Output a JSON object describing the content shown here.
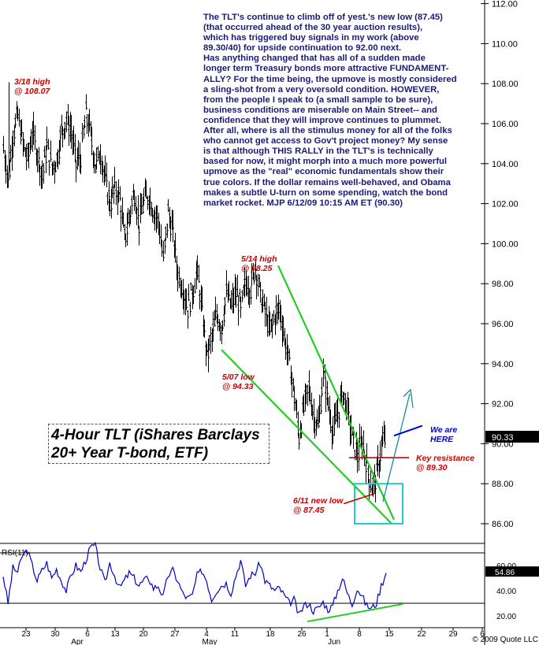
{
  "chart_data": [
    {
      "type": "candlestick",
      "title": "4-Hour TLT (iShares Barclays 20+ Year T-bond, ETF)",
      "title_lines": [
        "4-Hour TLT (iShares Barclays",
        "20+ Year T-bond, ETF)"
      ],
      "ylim": [
        85.0,
        112.0
      ],
      "y_ticks": [
        86.0,
        88.0,
        90.0,
        92.0,
        94.0,
        96.0,
        98.0,
        100.0,
        102.0,
        104.0,
        106.0,
        108.0,
        110.0,
        112.0
      ],
      "y_tick_labels": [
        "86.00",
        "88.00",
        "90.00",
        "92.00",
        "94.00",
        "96.00",
        "98.00",
        "100.00",
        "102.00",
        "104.00",
        "106.00",
        "108.00",
        "110.00",
        "112.00"
      ],
      "last_price": "90.33",
      "commentary": [
        "The TLT's continue to climb off of yest.'s new low (87.45)",
        "(that occurred ahead of the 30 year auction results),",
        "which has triggered buy signals in my work (above",
        "89.30/40) for upside continuation to 92.00 next.",
        "Has anything changed that has all of a sudden made",
        "longer term Treasury bonds more attractive FUNDAMENT-",
        "ALLY? For the time being, the upmove is mostly considered",
        "a sling-shot from a very oversold condition. HOWEVER,",
        "from the people I speak to (a small sample to be sure),",
        "business conditions are miserable on Main Street-- and",
        "confidence that they will improve continues to plummet.",
        "After all, where is all the stimulus money for all of the folks",
        "who cannot get access to Gov't project money?  My sense",
        "is that although THIS RALLY in the TLT's is technically",
        "based for now, it might morph into a much more powerful",
        "upmove as the \"real\" economic fundamentals show their",
        "true colors. If the dollar remains well-behaved, and Obama",
        "makes a subtle U-turn on some spending, watch the bond",
        "market rocket.  MJP  6/12/09  10:15 AM ET  (90.30)"
      ],
      "annotations": [
        {
          "lines": [
            "3/18 high",
            "@ 108.07"
          ],
          "color": "#cc0000"
        },
        {
          "lines": [
            "5/14 high",
            "@ 98.25"
          ],
          "color": "#cc0000"
        },
        {
          "lines": [
            "5/07 low",
            "@ 94.33"
          ],
          "color": "#cc0000"
        },
        {
          "lines": [
            "6/11 new low",
            "@ 87.45"
          ],
          "color": "#cc0000"
        },
        {
          "lines": [
            "Key resistance",
            "@ 89.30"
          ],
          "color": "#cc0000"
        },
        {
          "lines": [
            "We are",
            "HERE"
          ],
          "color": "#0000cc"
        }
      ],
      "x_ticks": [
        "23",
        "30",
        "6",
        "13",
        "20",
        "27",
        "4",
        "11",
        "18",
        "26",
        "1",
        "8",
        "15",
        "22",
        "29",
        "6"
      ],
      "month_labels": [
        "Apr",
        "May",
        "Jun"
      ],
      "price_path": [
        104.8,
        103.2,
        105.5,
        106.4,
        105.0,
        104.2,
        105.6,
        104.5,
        103.4,
        104.9,
        103.8,
        104.2,
        105.6,
        106.2,
        105.6,
        104.0,
        104.4,
        106.5,
        105.5,
        103.9,
        104.6,
        103.2,
        102.0,
        102.8,
        102.3,
        100.2,
        101.4,
        102.6,
        101.0,
        102.2,
        102.4,
        101.6,
        101.2,
        99.2,
        101.6,
        100.5,
        98.5,
        97.8,
        96.8,
        97.6,
        98.6,
        96.6,
        94.4,
        95.3,
        96.5,
        95.8,
        97.5,
        96.9,
        97.6,
        96.7,
        98.1,
        97.8,
        98.9,
        97.4,
        96.6,
        95.6,
        96.4,
        96.8,
        95.3,
        94.0,
        92.4,
        90.4,
        91.8,
        92.8,
        91.4,
        90.9,
        93.5,
        92.0,
        90.6,
        91.5,
        92.6,
        91.7,
        90.3,
        89.4,
        90.1,
        88.9,
        87.8,
        88.4,
        89.9,
        90.4
      ]
    },
    {
      "type": "line",
      "title": "RSI(11)",
      "ylim": [
        10,
        80
      ],
      "y_ticks": [
        20,
        40,
        60
      ],
      "y_tick_labels": [
        "20.00",
        "40.00",
        "60.00"
      ],
      "reference_lines": [
        70,
        30
      ],
      "last_value": "54.86",
      "rsi_path": [
        52,
        30,
        58,
        55,
        68,
        72,
        60,
        48,
        56,
        62,
        50,
        57,
        48,
        40,
        52,
        60,
        55,
        64,
        74,
        76,
        58,
        46,
        62,
        52,
        42,
        48,
        54,
        50,
        44,
        48,
        50,
        42,
        44,
        35,
        52,
        56,
        48,
        38,
        34,
        36,
        52,
        56,
        48,
        33,
        40,
        44,
        46,
        38,
        52,
        64,
        44,
        52,
        54,
        62,
        48,
        44,
        40,
        42,
        36,
        30,
        33,
        20,
        28,
        30,
        24,
        26,
        31,
        25,
        28,
        40,
        50,
        38,
        29,
        42,
        36,
        28,
        26,
        30,
        44,
        54
      ]
    }
  ],
  "copyright": "© 2009 Quote LLC",
  "colors": {
    "trendline": "#22cc22",
    "projection": "#008888",
    "box": "#22cccc",
    "here_line": "#0000dd",
    "annotation": "#cc0000"
  }
}
